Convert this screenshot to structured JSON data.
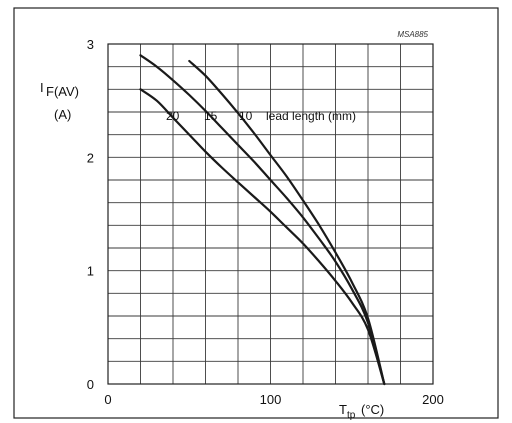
{
  "chart_data": {
    "type": "line",
    "doc_code": "MSA885",
    "ylabel": {
      "main": "I",
      "sub": "F(AV)",
      "unit": "(A)"
    },
    "xlabel": {
      "main": "T",
      "sub": "tp",
      "unit": "(°C)"
    },
    "xlim": [
      0,
      200
    ],
    "ylim": [
      0,
      3
    ],
    "x_ticks": [
      {
        "value": 0,
        "label": "0"
      },
      {
        "value": 100,
        "label": "100"
      },
      {
        "value": 200,
        "label": "200"
      }
    ],
    "y_ticks": [
      {
        "value": 0,
        "label": "0"
      },
      {
        "value": 1,
        "label": "1"
      },
      {
        "value": 2,
        "label": "2"
      },
      {
        "value": 3,
        "label": "3"
      }
    ],
    "grid": true,
    "x_grid_step": 20,
    "y_grid_step": 0.2,
    "series_label_text": "lead length (mm)",
    "series": [
      {
        "name": "20",
        "x": [
          20,
          30,
          40,
          50,
          60,
          70,
          80,
          90,
          100,
          110,
          120,
          130,
          140,
          150,
          160,
          170
        ],
        "y": [
          2.6,
          2.5,
          2.35,
          2.2,
          2.05,
          1.91,
          1.78,
          1.65,
          1.52,
          1.38,
          1.24,
          1.08,
          0.91,
          0.72,
          0.48,
          0.0
        ]
      },
      {
        "name": "15",
        "x": [
          20,
          30,
          40,
          50,
          60,
          70,
          80,
          90,
          100,
          110,
          120,
          130,
          140,
          150,
          160,
          170
        ],
        "y": [
          2.9,
          2.8,
          2.68,
          2.55,
          2.41,
          2.26,
          2.11,
          1.96,
          1.8,
          1.64,
          1.47,
          1.28,
          1.08,
          0.84,
          0.54,
          0.0
        ]
      },
      {
        "name": "10",
        "x": [
          50,
          60,
          70,
          80,
          90,
          100,
          110,
          120,
          130,
          140,
          150,
          160,
          170
        ],
        "y": [
          2.85,
          2.72,
          2.56,
          2.39,
          2.21,
          2.02,
          1.83,
          1.62,
          1.4,
          1.16,
          0.9,
          0.58,
          0.0
        ]
      }
    ]
  }
}
